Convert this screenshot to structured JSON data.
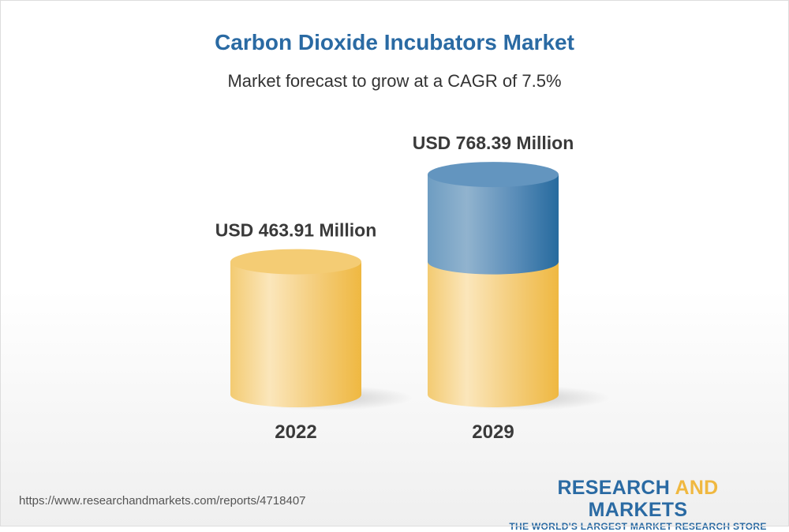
{
  "chart_data": {
    "type": "bar",
    "title": "Carbon Dioxide Incubators Market",
    "subtitle": "Market forecast to grow at a CAGR of 7.5%",
    "categories": [
      "2022",
      "2029"
    ],
    "values": [
      463.91,
      768.39
    ],
    "data_labels": [
      "USD 463.91 Million",
      "USD 768.39 Million"
    ],
    "style": "3d-cylinder",
    "colors": {
      "base": "#f2c15a",
      "growth": "#2a6aa3",
      "title": "#2a6aa3"
    },
    "grid": false
  },
  "footer": {
    "url": "https://www.researchandmarkets.com/reports/4718407",
    "logo_word1": "RESEARCH",
    "logo_word2": "AND",
    "logo_word3": "MARKETS",
    "logo_tagline": "THE WORLD'S LARGEST MARKET RESEARCH STORE"
  }
}
